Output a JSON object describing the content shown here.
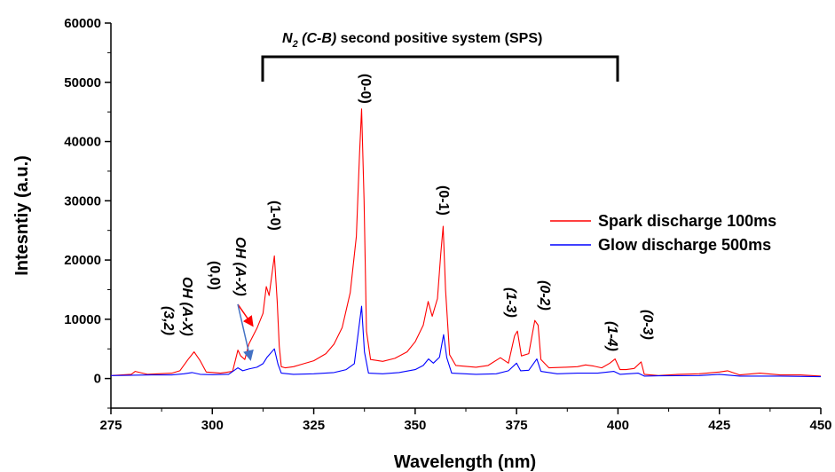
{
  "chart_data": {
    "type": "line",
    "xlabel": "Wavelength (nm)",
    "ylabel": "Intesntiy (a.u.)",
    "xlim": [
      275,
      450
    ],
    "ylim": [
      -5000,
      60000
    ],
    "x_ticks": [
      275,
      300,
      325,
      350,
      375,
      400,
      425,
      450
    ],
    "y_ticks": [
      0,
      10000,
      20000,
      30000,
      40000,
      50000,
      60000
    ],
    "legend_position": "center-right",
    "series": [
      {
        "name": "Spark discharge 100ms",
        "color": "#ff0000",
        "points": [
          [
            275,
            500
          ],
          [
            280,
            700
          ],
          [
            281,
            1200
          ],
          [
            284,
            700
          ],
          [
            290,
            900
          ],
          [
            292,
            1300
          ],
          [
            294,
            3200
          ],
          [
            295.5,
            4500
          ],
          [
            297,
            3000
          ],
          [
            298.5,
            1100
          ],
          [
            302,
            900
          ],
          [
            305,
            1200
          ],
          [
            306.3,
            4800
          ],
          [
            307,
            3800
          ],
          [
            308,
            3200
          ],
          [
            309,
            5800
          ],
          [
            311,
            8500
          ],
          [
            312.5,
            11000
          ],
          [
            313.3,
            15500
          ],
          [
            314,
            14000
          ],
          [
            315.3,
            20700
          ],
          [
            316,
            13000
          ],
          [
            316.5,
            5500
          ],
          [
            317,
            2000
          ],
          [
            318,
            1800
          ],
          [
            320,
            2000
          ],
          [
            322,
            2400
          ],
          [
            325,
            3000
          ],
          [
            328,
            4200
          ],
          [
            330,
            5800
          ],
          [
            332,
            8600
          ],
          [
            334,
            14500
          ],
          [
            335.5,
            24000
          ],
          [
            336.3,
            38000
          ],
          [
            336.8,
            45500
          ],
          [
            337.4,
            30000
          ],
          [
            338,
            8000
          ],
          [
            339,
            3200
          ],
          [
            342,
            2900
          ],
          [
            345,
            3400
          ],
          [
            348,
            4500
          ],
          [
            350,
            6200
          ],
          [
            352,
            9000
          ],
          [
            353.2,
            13000
          ],
          [
            354.2,
            10500
          ],
          [
            355.5,
            13500
          ],
          [
            356.3,
            21000
          ],
          [
            356.9,
            25700
          ],
          [
            357.5,
            15000
          ],
          [
            358.5,
            4000
          ],
          [
            360,
            2200
          ],
          [
            365,
            1900
          ],
          [
            368,
            2200
          ],
          [
            371,
            3500
          ],
          [
            373,
            2600
          ],
          [
            374.5,
            7200
          ],
          [
            375.2,
            8000
          ],
          [
            376.2,
            3800
          ],
          [
            378,
            4200
          ],
          [
            379.5,
            9800
          ],
          [
            380.3,
            9000
          ],
          [
            381,
            3200
          ],
          [
            383,
            1800
          ],
          [
            387,
            1900
          ],
          [
            390,
            2000
          ],
          [
            392,
            2300
          ],
          [
            394,
            2100
          ],
          [
            396,
            1800
          ],
          [
            398,
            2600
          ],
          [
            399.3,
            3300
          ],
          [
            400.5,
            1500
          ],
          [
            402,
            1500
          ],
          [
            404,
            1700
          ],
          [
            405.7,
            2800
          ],
          [
            406.5,
            700
          ],
          [
            410,
            500
          ],
          [
            415,
            700
          ],
          [
            420,
            800
          ],
          [
            425,
            1100
          ],
          [
            427,
            1300
          ],
          [
            430,
            600
          ],
          [
            435,
            900
          ],
          [
            440,
            600
          ],
          [
            445,
            600
          ],
          [
            450,
            400
          ]
        ]
      },
      {
        "name": "Glow discharge 500ms",
        "color": "#0000ff",
        "points": [
          [
            275,
            500
          ],
          [
            285,
            600
          ],
          [
            290,
            600
          ],
          [
            293,
            800
          ],
          [
            295,
            1000
          ],
          [
            297,
            700
          ],
          [
            300,
            650
          ],
          [
            304,
            700
          ],
          [
            306.3,
            1800
          ],
          [
            307.5,
            1300
          ],
          [
            309,
            1600
          ],
          [
            311,
            1900
          ],
          [
            312.5,
            2500
          ],
          [
            313.5,
            3600
          ],
          [
            315.3,
            5000
          ],
          [
            316.2,
            2400
          ],
          [
            317,
            900
          ],
          [
            320,
            700
          ],
          [
            325,
            800
          ],
          [
            330,
            1000
          ],
          [
            333,
            1500
          ],
          [
            335,
            2500
          ],
          [
            336.8,
            12200
          ],
          [
            337.5,
            4500
          ],
          [
            338.5,
            900
          ],
          [
            342,
            800
          ],
          [
            346,
            1000
          ],
          [
            350,
            1500
          ],
          [
            352,
            2200
          ],
          [
            353.3,
            3300
          ],
          [
            354.5,
            2600
          ],
          [
            356,
            3600
          ],
          [
            357,
            7400
          ],
          [
            357.8,
            3500
          ],
          [
            359,
            900
          ],
          [
            365,
            700
          ],
          [
            370,
            800
          ],
          [
            373,
            1300
          ],
          [
            375,
            2600
          ],
          [
            376,
            1300
          ],
          [
            378,
            1400
          ],
          [
            380,
            3300
          ],
          [
            381,
            1200
          ],
          [
            385,
            800
          ],
          [
            390,
            900
          ],
          [
            395,
            900
          ],
          [
            399,
            1200
          ],
          [
            400.5,
            700
          ],
          [
            405,
            900
          ],
          [
            406.5,
            400
          ],
          [
            410,
            450
          ],
          [
            420,
            500
          ],
          [
            425,
            700
          ],
          [
            430,
            400
          ],
          [
            440,
            400
          ],
          [
            450,
            300
          ]
        ]
      }
    ],
    "peak_labels": [
      "(3,2)",
      "(0,0)",
      "(1-0)",
      "(0-0)",
      "(0-1)",
      "(1-3)",
      "(0-2)",
      "(1-4)",
      "(0-3)"
    ],
    "oh_labels": [
      "OH (A-X)",
      "OH (A-X)"
    ],
    "banner": {
      "species": "N",
      "subscript": "2",
      "transition": " (C-B)",
      "system": " second positive system (SPS)"
    }
  }
}
